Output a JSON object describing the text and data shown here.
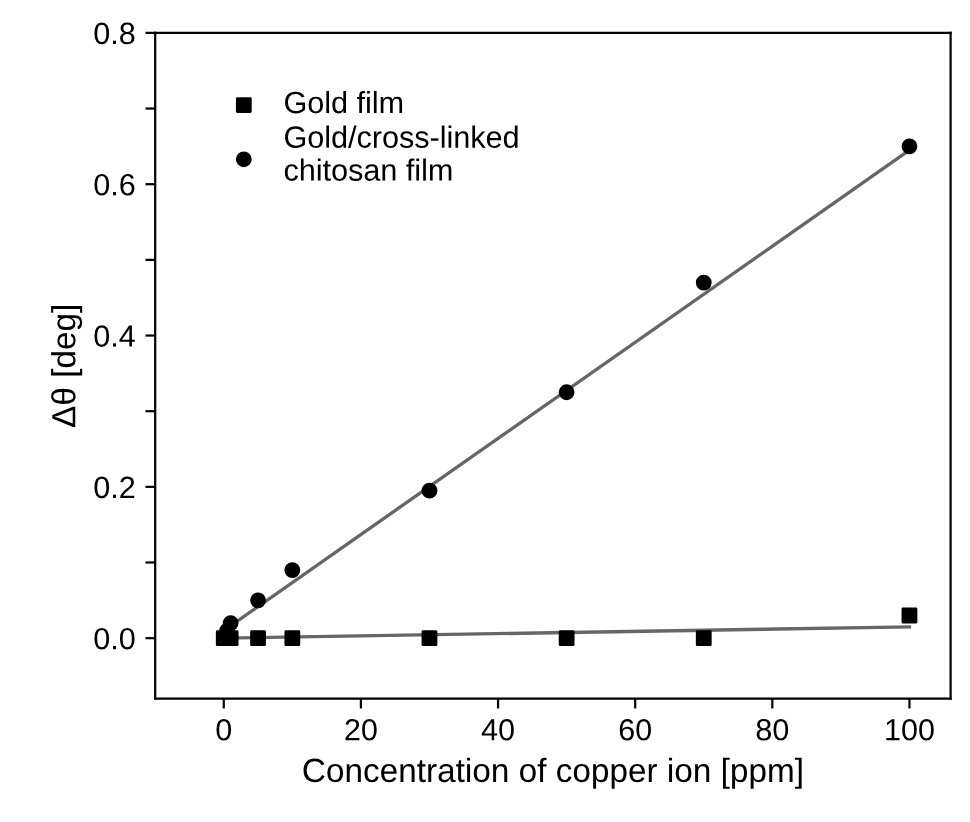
{
  "chart_data": {
    "type": "scatter",
    "xlabel": "Concentration of copper ion [ppm]",
    "ylabel": "Δθ [deg]",
    "xlim": [
      -10,
      106
    ],
    "ylim": [
      -0.08,
      0.8
    ],
    "xticks": [
      0,
      20,
      40,
      60,
      80,
      100
    ],
    "yticks": [
      {
        "value": 0.0,
        "label": "0.0"
      },
      {
        "value": 0.1,
        "label": null
      },
      0.2,
      {
        "value": 0.3,
        "label": null
      },
      0.4,
      {
        "value": 0.5,
        "label": null
      },
      0.6,
      {
        "value": 0.7,
        "label": null
      },
      0.8
    ],
    "grid": false,
    "legend": "top left",
    "series": [
      {
        "name": "Gold film",
        "color": "#000000",
        "marker": "square",
        "x": [
          0,
          1,
          5,
          10,
          30,
          50,
          70,
          100
        ],
        "values": [
          0.0,
          0.0,
          0.0,
          0.0,
          0.0,
          0.0,
          0.0,
          0.03
        ]
      },
      {
        "name": "Gold/cross-linked\nchitosan film",
        "color": "#000000",
        "marker": "circle",
        "x": [
          0.5,
          1,
          5,
          10,
          30,
          50,
          70,
          100
        ],
        "values": [
          0.01,
          0.02,
          0.05,
          0.09,
          0.195,
          0.325,
          0.47,
          0.65
        ]
      },
      {
        "type": "line",
        "color": "#666666",
        "marker": "none",
        "line_style": "solid",
        "x": [
          0,
          100
        ],
        "values": [
          0.0,
          0.015
        ]
      },
      {
        "type": "line",
        "color": "#666666",
        "marker": "none",
        "line_style": "solid",
        "x": [
          0,
          100
        ],
        "values": [
          0.01,
          0.645
        ]
      }
    ]
  }
}
